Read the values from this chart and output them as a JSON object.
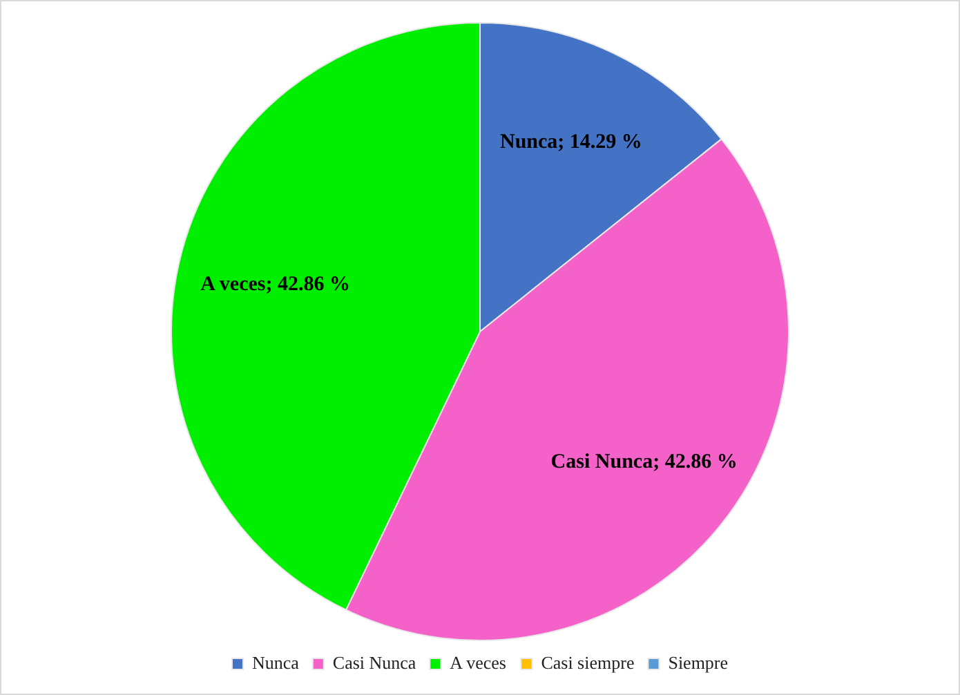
{
  "chart_data": {
    "type": "pie",
    "categories": [
      "Nunca",
      "Casi Nunca",
      "A veces",
      "Casi siempre",
      "Siempre"
    ],
    "values": [
      14.29,
      42.86,
      42.86,
      0,
      0
    ],
    "colors": [
      "#4472c4",
      "#f462c9",
      "#00ee00",
      "#ffc000",
      "#5b9bd5"
    ],
    "value_labels": [
      "Nunca; 14.29 %",
      "Casi Nunca; 42.86 %",
      "A veces; 42.86 %",
      null,
      null
    ],
    "legend": "bottom"
  }
}
